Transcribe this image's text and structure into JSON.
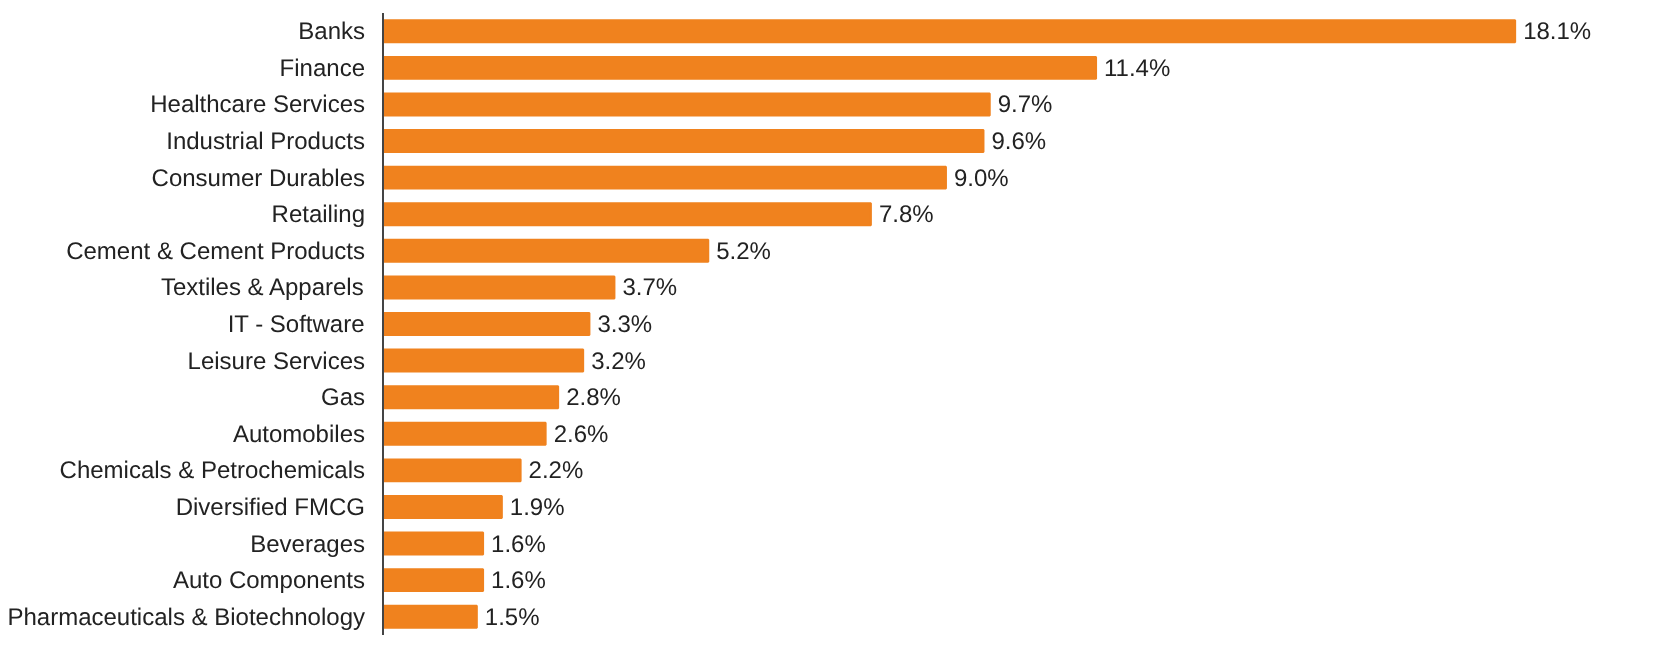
{
  "chart_data": {
    "type": "bar",
    "orientation": "horizontal",
    "categories": [
      "Banks",
      "Finance",
      "Healthcare Services",
      "Industrial Products",
      "Consumer Durables",
      "Retailing",
      "Cement & Cement Products",
      "Textiles & Apparels",
      "IT - Software",
      "Leisure Services",
      "Gas",
      "Automobiles",
      "Chemicals & Petrochemicals",
      "Diversified FMCG",
      "Beverages",
      "Auto Components",
      "Pharmaceuticals & Biotechnology"
    ],
    "values": [
      18.1,
      11.4,
      9.7,
      9.6,
      9.0,
      7.8,
      5.2,
      3.7,
      3.3,
      3.2,
      2.8,
      2.6,
      2.2,
      1.9,
      1.6,
      1.6,
      1.5
    ],
    "value_labels": [
      "18.1%",
      "11.4%",
      "9.7%",
      "9.6%",
      "9.0%",
      "7.8%",
      "5.2%",
      "3.7%",
      "3.3%",
      "3.2%",
      "2.8%",
      "2.6%",
      "2.2%",
      "1.9%",
      "1.6%",
      "1.6%",
      "1.5%"
    ],
    "color": "#f0821e",
    "tick_labels": "y"
  }
}
